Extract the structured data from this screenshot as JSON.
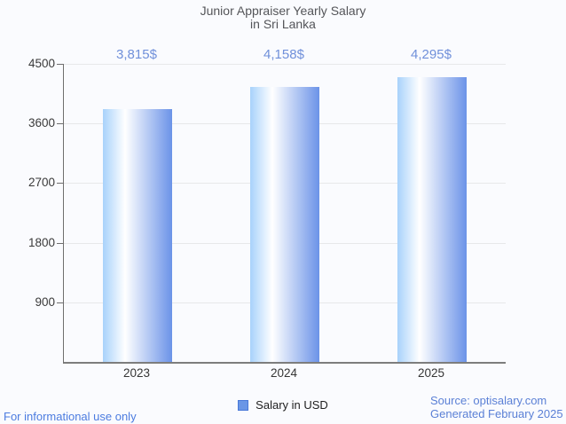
{
  "header": {
    "title_line1": "Junior Appraiser Yearly Salary",
    "title_line2": "in Sri Lanka"
  },
  "chart_data": {
    "type": "bar",
    "title": "Junior Appraiser Yearly Salary in Sri Lanka",
    "categories": [
      "2023",
      "2024",
      "2025"
    ],
    "series": [
      {
        "name": "Salary in USD",
        "values": [
          3815,
          4158,
          4295
        ]
      }
    ],
    "value_labels": [
      "3,815$",
      "4,158$",
      "4,295$"
    ],
    "xlabel": "",
    "ylabel": "",
    "ylim": [
      0,
      4500
    ],
    "yticks": [
      900,
      1800,
      2700,
      3600,
      4500
    ],
    "grid": "horizontal",
    "legend_position": "bottom-center",
    "bar_gradient": [
      "#a8d2fb",
      "#ffffff",
      "#6b93e8"
    ],
    "value_label_color": "#7090da"
  },
  "legend": {
    "label": "Salary in USD",
    "swatch_color": "#6a96e6",
    "swatch_border": "#4878d8"
  },
  "footer": {
    "disclaimer": "For informational use only",
    "disclaimer_color": "#4c7ce0",
    "source_line1": "Source: optisalary.com",
    "source_line2": "Generated February 2025",
    "source_color": "#5b80d6"
  }
}
